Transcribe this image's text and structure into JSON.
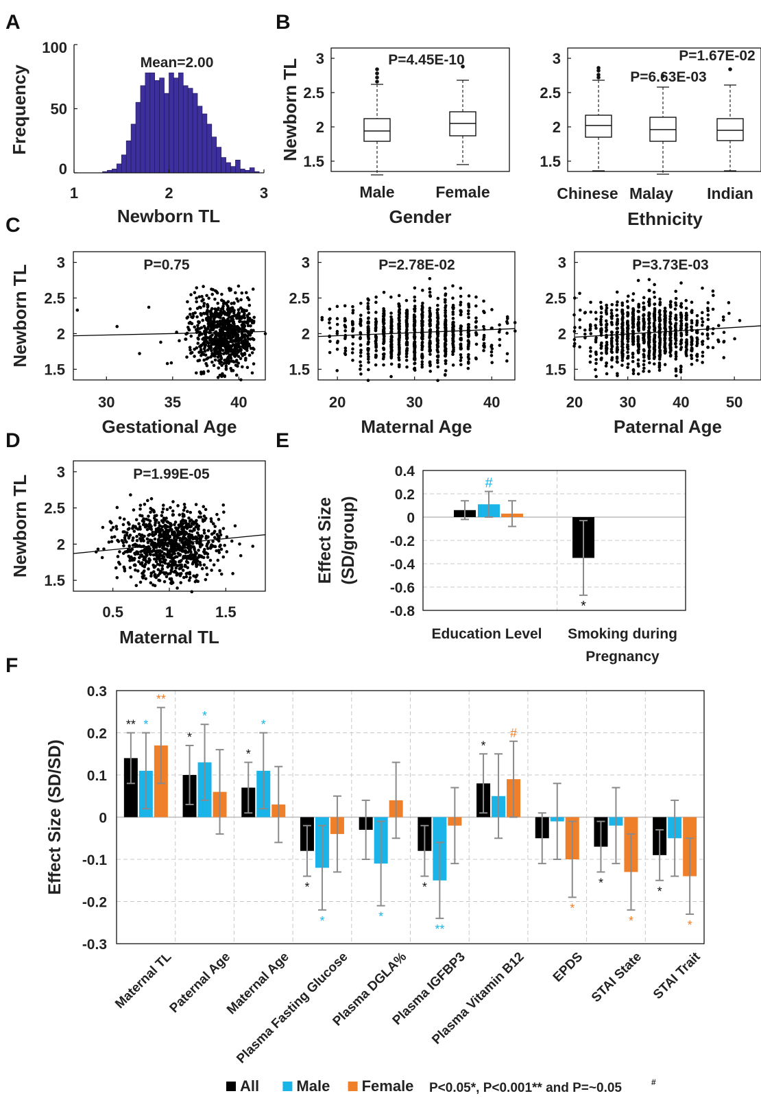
{
  "panel_labels": [
    "A",
    "B",
    "C",
    "D",
    "E",
    "F"
  ],
  "colors": {
    "all": "#000000",
    "male": "#1ab4e8",
    "female": "#f07f2a",
    "hist": "#3d2f9c",
    "errorbar": "#8a8a8a",
    "grid": "#c8c8c8"
  },
  "chart_data": [
    {
      "id": "A",
      "type": "bar",
      "xlabel": "Newborn TL",
      "ylabel": "Frequency",
      "annotation": "Mean=2.00",
      "xlim": [
        1,
        3
      ],
      "ylim": [
        0,
        100
      ],
      "xticks": [
        "1",
        "2",
        "3"
      ],
      "yticks": [
        "0",
        "50",
        "100"
      ],
      "bin_start": 1.3,
      "bin_width": 0.05,
      "values": [
        1,
        2,
        3,
        7,
        14,
        25,
        38,
        55,
        68,
        78,
        78,
        72,
        74,
        62,
        78,
        74,
        78,
        68,
        66,
        62,
        52,
        46,
        38,
        28,
        20,
        12,
        8,
        5,
        10,
        3,
        2,
        4,
        1
      ]
    },
    {
      "id": "B-gender",
      "type": "box",
      "ylabel": "Newborn TL",
      "xlabel": "Gender",
      "annotation": "P=4.45E-10",
      "ylim": [
        1.35,
        3.15
      ],
      "yticks": [
        "1.5",
        "2",
        "2.5",
        "3"
      ],
      "categories": [
        "Male",
        "Female"
      ],
      "boxes": [
        {
          "whislo": 1.3,
          "q1": 1.79,
          "med": 1.94,
          "q3": 2.12,
          "whishi": 2.62,
          "outliers": [
            2.66,
            2.72,
            2.78,
            2.84
          ]
        },
        {
          "whislo": 1.45,
          "q1": 1.87,
          "med": 2.05,
          "q3": 2.22,
          "whishi": 2.68,
          "outliers": [
            2.88
          ]
        }
      ]
    },
    {
      "id": "B-ethnicity",
      "type": "box",
      "xlabel": "Ethnicity",
      "annotations": [
        "P=1.67E-02",
        "P=6.63E-03"
      ],
      "ylim": [
        1.35,
        3.15
      ],
      "yticks": [
        "1.5",
        "2",
        "2.5",
        "3"
      ],
      "categories": [
        "Chinese",
        "Malay",
        "Indian"
      ],
      "boxes": [
        {
          "whislo": 1.36,
          "q1": 1.85,
          "med": 2.02,
          "q3": 2.17,
          "whishi": 2.68,
          "outliers": [
            2.72,
            2.76,
            2.82,
            2.86
          ]
        },
        {
          "whislo": 1.31,
          "q1": 1.79,
          "med": 1.96,
          "q3": 2.14,
          "whishi": 2.58,
          "outliers": [
            2.74
          ]
        },
        {
          "whislo": 1.36,
          "q1": 1.8,
          "med": 1.95,
          "q3": 2.12,
          "whishi": 2.61,
          "outliers": [
            2.84
          ]
        }
      ]
    },
    {
      "id": "C-gestational",
      "type": "scatter",
      "ylabel": "Newborn TL",
      "xlabel": "Gestational Age",
      "annotation": "P=0.75",
      "xlim": [
        27.5,
        42
      ],
      "ylim": [
        1.35,
        3.15
      ],
      "xticks": [
        "30",
        "35",
        "40"
      ],
      "yticks": [
        "1.5",
        "2",
        "2.5",
        "3"
      ],
      "fit": {
        "x": [
          27.5,
          42
        ],
        "y": [
          1.97,
          2.03
        ]
      },
      "cloud": {
        "n": 800,
        "x_mean": 38.9,
        "x_sd": 1.3,
        "x_min": 35.8,
        "x_max": 41.2,
        "y_mean": 2.0,
        "y_sd": 0.24
      },
      "extra_points": [
        [
          27.8,
          2.33
        ],
        [
          30.8,
          2.1
        ],
        [
          32.5,
          1.72
        ],
        [
          33.2,
          2.37
        ],
        [
          34.1,
          1.88
        ],
        [
          34.6,
          1.58
        ],
        [
          34.9,
          1.59
        ],
        [
          35.3,
          2.02
        ],
        [
          35.5,
          1.9
        ],
        [
          42,
          2.0
        ]
      ]
    },
    {
      "id": "C-maternal",
      "type": "scatter",
      "xlabel": "Maternal Age",
      "annotation": "P=2.78E-02",
      "xlim": [
        17.5,
        43
      ],
      "ylim": [
        1.35,
        3.15
      ],
      "xticks": [
        "20",
        "30",
        "40"
      ],
      "yticks": [
        "1.5",
        "2",
        "2.5",
        "3"
      ],
      "fit": {
        "x": [
          17.5,
          43
        ],
        "y": [
          1.96,
          2.07
        ]
      },
      "cloud": {
        "n": 900,
        "x_mean": 30.5,
        "x_sd": 5.0,
        "x_min": 18,
        "x_max": 43,
        "x_integer": true,
        "y_mean": 2.01,
        "y_sd": 0.24
      },
      "extra_points": []
    },
    {
      "id": "C-paternal",
      "type": "scatter",
      "xlabel": "Paternal Age",
      "annotation": "P=3.73E-03",
      "xlim": [
        20,
        55
      ],
      "ylim": [
        1.35,
        3.15
      ],
      "xticks": [
        "20",
        "30",
        "40",
        "50"
      ],
      "yticks": [
        "1.5",
        "2",
        "2.5",
        "3"
      ],
      "fit": {
        "x": [
          20,
          55
        ],
        "y": [
          1.95,
          2.11
        ]
      },
      "cloud": {
        "n": 900,
        "x_mean": 34.0,
        "x_sd": 6.0,
        "x_min": 20,
        "x_max": 55,
        "x_integer": true,
        "y_mean": 2.02,
        "y_sd": 0.24
      },
      "extra_points": []
    },
    {
      "id": "D",
      "type": "scatter",
      "ylabel": "Newborn TL",
      "xlabel": "Maternal TL",
      "annotation": "P=1.99E-05",
      "xlim": [
        0.15,
        1.85
      ],
      "ylim": [
        1.35,
        3.15
      ],
      "xticks": [
        "0.5",
        "1",
        "1.5"
      ],
      "yticks": [
        "1.5",
        "2",
        "2.5",
        "3"
      ],
      "fit": {
        "x": [
          0.15,
          1.85
        ],
        "y": [
          1.87,
          2.13
        ]
      },
      "cloud": {
        "n": 900,
        "x_mean": 1.0,
        "x_sd": 0.23,
        "x_min": 0.2,
        "x_max": 1.82,
        "y_mean": 2.0,
        "y_sd": 0.24
      },
      "extra_points": []
    },
    {
      "id": "E",
      "type": "bar",
      "ylabel": "Effect Size\n(SD/group)",
      "ylim": [
        -0.8,
        0.4
      ],
      "yticks": [
        "-0.8",
        "-0.6",
        "-0.4",
        "-0.2",
        "0",
        "0.2",
        "0.4"
      ],
      "categories": [
        "Education Level",
        "Smoking during\nPregnancy"
      ],
      "groups": [
        {
          "bars": [
            {
              "series": "All",
              "value": 0.06,
              "err": 0.08,
              "mark": "",
              "mark_side": "top"
            },
            {
              "series": "Male",
              "value": 0.11,
              "err": 0.11,
              "mark": "#",
              "mark_side": "top"
            },
            {
              "series": "Female",
              "value": 0.03,
              "err": 0.11,
              "mark": "",
              "mark_side": "top"
            }
          ]
        },
        {
          "bars": [
            {
              "series": "All",
              "value": -0.35,
              "err": 0.32,
              "mark": "*",
              "mark_side": "bottom"
            }
          ]
        }
      ]
    },
    {
      "id": "F",
      "type": "bar",
      "ylabel": "Effect Size (SD/SD)",
      "ylim": [
        -0.3,
        0.3
      ],
      "yticks": [
        "-0.3",
        "-0.2",
        "-0.1",
        "0",
        "0.1",
        "0.2",
        "0.3"
      ],
      "categories": [
        "Maternal TL",
        "Paternal Age",
        "Maternal Age",
        "Plasma Fasting Glucose",
        "Plasma DGLA%",
        "Plasma IGFBP3",
        "Plasma Vitamin B12",
        "EPDS",
        "STAI State",
        "STAI Trait"
      ],
      "series": [
        {
          "name": "All",
          "values": [
            0.14,
            0.1,
            0.07,
            -0.08,
            -0.03,
            -0.08,
            0.08,
            -0.05,
            -0.07,
            -0.09
          ],
          "errors": [
            0.06,
            0.07,
            0.06,
            0.06,
            0.07,
            0.06,
            0.07,
            0.06,
            0.06,
            0.06
          ],
          "marks": [
            "**",
            "*",
            "*",
            "*",
            "",
            "*",
            "*",
            "",
            "*",
            "*"
          ]
        },
        {
          "name": "Male",
          "values": [
            0.11,
            0.13,
            0.11,
            -0.12,
            -0.11,
            -0.15,
            0.05,
            -0.01,
            -0.02,
            -0.05
          ],
          "errors": [
            0.09,
            0.09,
            0.09,
            0.1,
            0.1,
            0.09,
            0.1,
            0.09,
            0.09,
            0.09
          ],
          "marks": [
            "*",
            "*",
            "*",
            "*",
            "*",
            "**",
            "",
            "",
            "",
            ""
          ]
        },
        {
          "name": "Female",
          "values": [
            0.17,
            0.06,
            0.03,
            -0.04,
            0.04,
            -0.02,
            0.09,
            -0.1,
            -0.13,
            -0.14
          ],
          "errors": [
            0.09,
            0.1,
            0.09,
            0.09,
            0.09,
            0.09,
            0.09,
            0.09,
            0.09,
            0.09
          ],
          "marks": [
            "**",
            "",
            "",
            "",
            "",
            "",
            "#",
            "*",
            "*",
            "*"
          ]
        }
      ],
      "legend": [
        "All",
        "Male",
        "Female"
      ],
      "legend_placement": "bottom",
      "footnote": "P<0.05*, P<0.001** and P=~0.05#"
    }
  ]
}
